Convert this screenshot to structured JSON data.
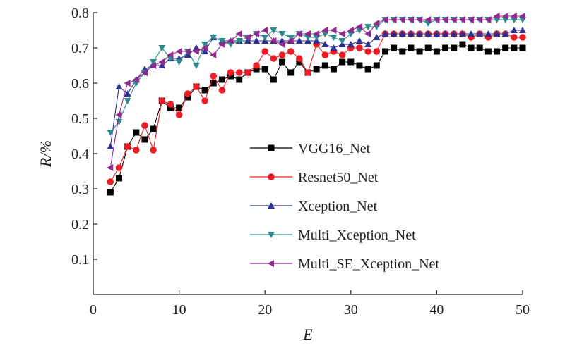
{
  "chart_data": {
    "type": "line",
    "xlabel": "E",
    "ylabel": "R/%",
    "xlim": [
      0,
      50
    ],
    "ylim": [
      0,
      0.8
    ],
    "x_ticks": [
      "0",
      "10",
      "20",
      "30",
      "40",
      "50"
    ],
    "y_ticks": [
      "0.1",
      "0.2",
      "0.3",
      "0.4",
      "0.5",
      "0.6",
      "0.7",
      "0.8"
    ],
    "grid": false,
    "legend_position": "center-right",
    "x": [
      2,
      3,
      4,
      5,
      6,
      7,
      8,
      9,
      10,
      11,
      12,
      13,
      14,
      15,
      16,
      17,
      18,
      19,
      20,
      21,
      22,
      23,
      24,
      25,
      26,
      27,
      28,
      29,
      30,
      31,
      32,
      33,
      34,
      35,
      36,
      37,
      38,
      39,
      40,
      41,
      42,
      43,
      44,
      45,
      46,
      47,
      48,
      49,
      50
    ],
    "series": [
      {
        "name": "VGG16_Net",
        "color": "#000000",
        "marker": "square",
        "values": [
          0.29,
          0.33,
          0.42,
          0.46,
          0.44,
          0.47,
          0.55,
          0.53,
          0.53,
          0.56,
          0.59,
          0.58,
          0.6,
          0.61,
          0.62,
          0.61,
          0.63,
          0.64,
          0.64,
          0.61,
          0.66,
          0.63,
          0.66,
          0.63,
          0.64,
          0.65,
          0.64,
          0.66,
          0.66,
          0.65,
          0.64,
          0.65,
          0.69,
          0.7,
          0.69,
          0.7,
          0.69,
          0.7,
          0.69,
          0.7,
          0.7,
          0.71,
          0.7,
          0.7,
          0.69,
          0.69,
          0.7,
          0.7,
          0.7
        ]
      },
      {
        "name": "Resnet50_Net",
        "color": "#ed1c24",
        "marker": "circle",
        "values": [
          0.32,
          0.36,
          0.42,
          0.41,
          0.48,
          0.41,
          0.55,
          0.54,
          0.51,
          0.57,
          0.59,
          0.55,
          0.62,
          0.58,
          0.63,
          0.63,
          0.63,
          0.65,
          0.69,
          0.67,
          0.68,
          0.69,
          0.67,
          0.63,
          0.71,
          0.68,
          0.69,
          0.68,
          0.7,
          0.7,
          0.69,
          0.69,
          0.74,
          0.74,
          0.74,
          0.74,
          0.74,
          0.74,
          0.74,
          0.74,
          0.74,
          0.74,
          0.73,
          0.74,
          0.73,
          0.74,
          0.74,
          0.73,
          0.73
        ]
      },
      {
        "name": "Xception_Net",
        "color": "#2e3192",
        "marker": "triangle-up",
        "values": [
          0.42,
          0.59,
          0.57,
          0.61,
          0.64,
          0.65,
          0.65,
          0.67,
          0.67,
          0.68,
          0.7,
          0.69,
          0.73,
          0.72,
          0.72,
          0.72,
          0.72,
          0.72,
          0.72,
          0.72,
          0.72,
          0.72,
          0.72,
          0.72,
          0.72,
          0.71,
          0.7,
          0.71,
          0.71,
          0.72,
          0.71,
          0.73,
          0.74,
          0.74,
          0.74,
          0.74,
          0.74,
          0.74,
          0.74,
          0.74,
          0.74,
          0.74,
          0.74,
          0.74,
          0.74,
          0.74,
          0.74,
          0.75,
          0.75
        ]
      },
      {
        "name": "Multi_Xception_Net",
        "color": "#2e8b8b",
        "marker": "triangle-down",
        "values": [
          0.46,
          0.49,
          0.55,
          0.6,
          0.63,
          0.66,
          0.7,
          0.67,
          0.66,
          0.69,
          0.65,
          0.71,
          0.73,
          0.72,
          0.71,
          0.72,
          0.73,
          0.74,
          0.73,
          0.75,
          0.74,
          0.73,
          0.74,
          0.73,
          0.73,
          0.74,
          0.73,
          0.72,
          0.74,
          0.75,
          0.76,
          0.76,
          0.78,
          0.78,
          0.78,
          0.78,
          0.78,
          0.77,
          0.78,
          0.78,
          0.78,
          0.78,
          0.78,
          0.78,
          0.78,
          0.78,
          0.78,
          0.78,
          0.78
        ]
      },
      {
        "name": "Multi_SE_Xception_Net",
        "color": "#92278f",
        "marker": "triangle-left",
        "values": [
          0.36,
          0.51,
          0.6,
          0.61,
          0.63,
          0.65,
          0.66,
          0.68,
          0.69,
          0.69,
          0.69,
          0.7,
          0.68,
          0.71,
          0.72,
          0.74,
          0.73,
          0.74,
          0.75,
          0.72,
          0.71,
          0.72,
          0.74,
          0.74,
          0.74,
          0.75,
          0.75,
          0.74,
          0.75,
          0.76,
          0.74,
          0.77,
          0.78,
          0.78,
          0.78,
          0.78,
          0.78,
          0.78,
          0.78,
          0.78,
          0.78,
          0.78,
          0.78,
          0.78,
          0.78,
          0.79,
          0.79,
          0.79,
          0.79
        ]
      }
    ]
  }
}
